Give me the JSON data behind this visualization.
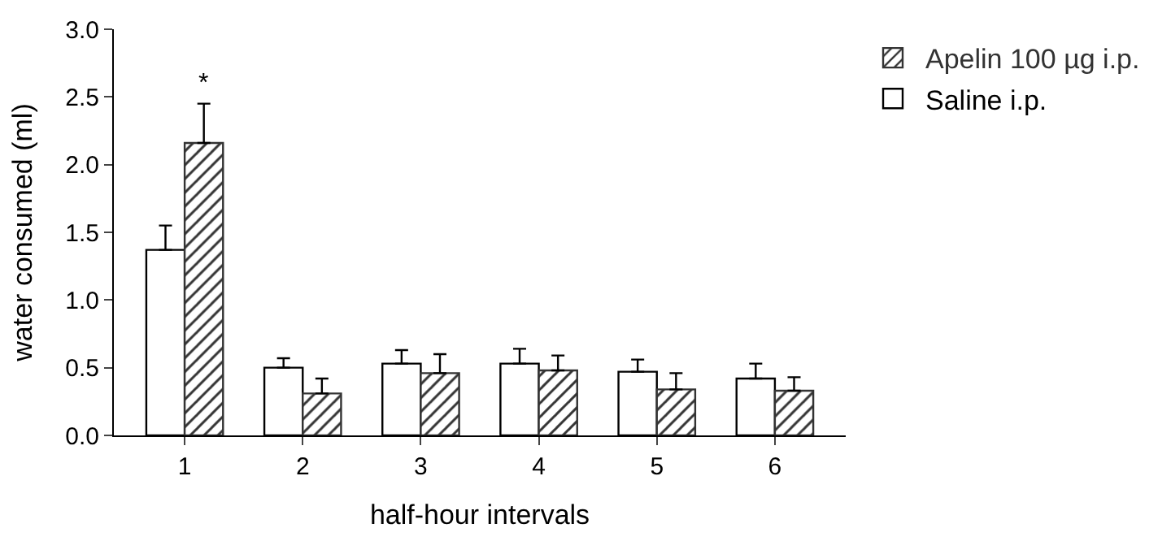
{
  "chart_data": {
    "type": "bar",
    "xlabel": "half-hour intervals",
    "ylabel": "water consumed (ml)",
    "categories": [
      "1",
      "2",
      "3",
      "4",
      "5",
      "6"
    ],
    "series": [
      {
        "name": "Saline i.p.",
        "color": "#000000",
        "values": [
          1.37,
          0.5,
          0.53,
          0.53,
          0.47,
          0.42
        ],
        "errors": [
          [
            1.37,
            1.55
          ],
          [
            0.5,
            0.57
          ],
          [
            0.53,
            0.63
          ],
          [
            0.53,
            0.64
          ],
          [
            0.47,
            0.56
          ],
          [
            0.42,
            0.53
          ]
        ]
      },
      {
        "name": "Apelin 100 µg i.p.",
        "color": "#333333",
        "values": [
          2.16,
          0.31,
          0.46,
          0.48,
          0.34,
          0.33
        ],
        "errors": [
          [
            2.16,
            2.45
          ],
          [
            0.31,
            0.42
          ],
          [
            0.46,
            0.6
          ],
          [
            0.48,
            0.59
          ],
          [
            0.34,
            0.46
          ],
          [
            0.33,
            0.43
          ]
        ]
      }
    ],
    "annotations": [
      "*"
    ],
    "ylim": [
      0,
      3.0
    ],
    "yticks": [
      {
        "value": 0,
        "label": "0.0"
      },
      {
        "value": 0.5,
        "label": "0.5"
      },
      {
        "value": 1.0,
        "label": "1.0"
      },
      {
        "value": 1.5,
        "label": "1.5"
      },
      {
        "value": 2.0,
        "label": "2.0"
      },
      {
        "value": 2.5,
        "label": "2.5"
      },
      {
        "value": 3.0,
        "label": "3.0"
      }
    ],
    "grid": false,
    "legend": "top right"
  }
}
